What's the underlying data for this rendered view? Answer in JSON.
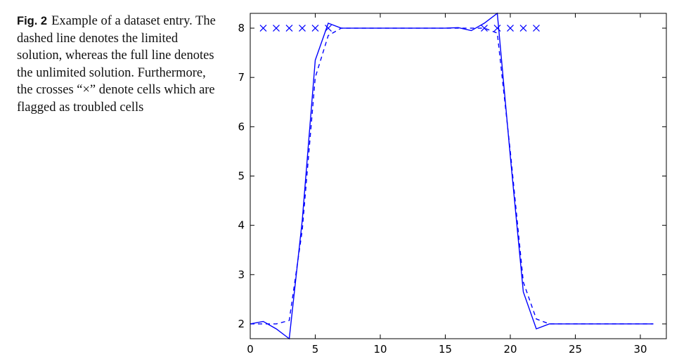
{
  "caption": {
    "label": "Fig. 2",
    "text": "Example of a dataset entry. The dashed line denotes the limited solution, whereas the full line denotes the unlimited solution. Furthermore, the crosses “×” denote cells which are flagged as troubled cells"
  },
  "chart_data": {
    "type": "line",
    "title": "",
    "xlabel": "",
    "ylabel": "",
    "xlim": [
      0,
      32
    ],
    "ylim": [
      1.7,
      8.3
    ],
    "xticks": [
      0,
      5,
      10,
      15,
      20,
      25,
      30
    ],
    "yticks": [
      2,
      3,
      4,
      5,
      6,
      7,
      8
    ],
    "grid": false,
    "color": "#0000ff",
    "series": [
      {
        "style": "solid",
        "x": [
          0,
          1,
          2,
          3,
          4,
          5,
          6,
          7,
          8,
          9,
          10,
          11,
          12,
          13,
          14,
          15,
          16,
          17,
          18,
          19,
          20,
          21,
          22,
          23,
          24,
          25,
          26,
          27,
          28,
          29,
          30,
          31
        ],
        "y": [
          2.0,
          2.05,
          1.9,
          1.7,
          4.1,
          7.35,
          8.1,
          8.0,
          8.0,
          8.0,
          8.0,
          8.0,
          8.0,
          8.0,
          8.0,
          8.0,
          8.01,
          7.95,
          8.1,
          8.3,
          5.4,
          2.65,
          1.9,
          2.0,
          2.0,
          2.0,
          2.0,
          2.0,
          2.0,
          2.0,
          2.0,
          2.0
        ]
      },
      {
        "style": "dashed",
        "x": [
          0,
          1,
          2,
          3,
          4,
          5,
          6,
          7,
          8,
          9,
          10,
          11,
          12,
          13,
          14,
          15,
          16,
          17,
          18,
          19,
          20,
          21,
          22,
          23,
          24,
          25,
          26,
          27,
          28,
          29,
          30,
          31
        ],
        "y": [
          2.0,
          2.0,
          2.0,
          2.07,
          3.9,
          7.0,
          7.85,
          8.0,
          8.0,
          8.0,
          8.0,
          8.0,
          8.0,
          8.0,
          8.0,
          8.0,
          8.0,
          8.0,
          8.0,
          7.9,
          5.5,
          2.85,
          2.1,
          2.0,
          2.0,
          2.0,
          2.0,
          2.0,
          2.0,
          2.0,
          2.0,
          2.0
        ]
      }
    ],
    "markers": {
      "symbol": "x",
      "x": [
        1,
        2,
        3,
        4,
        5,
        6,
        18,
        19,
        20,
        21,
        22
      ],
      "y": [
        8,
        8,
        8,
        8,
        8,
        8,
        8,
        8,
        8,
        8,
        8
      ]
    }
  }
}
